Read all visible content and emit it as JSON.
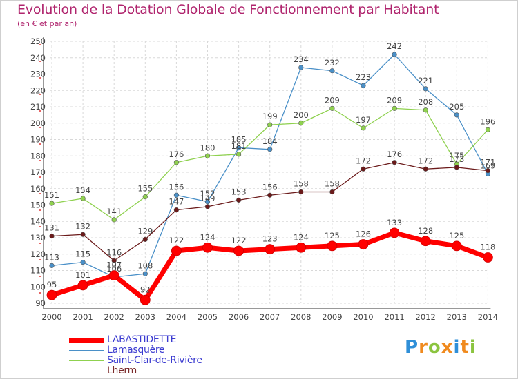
{
  "title": "Evolution de la Dotation Globale de Fonctionnement par Habitant",
  "subtitle": "(en € et par an)",
  "brand": {
    "letters": [
      "P",
      "r",
      "o",
      "x",
      "i",
      "t",
      "i"
    ],
    "colors": [
      "#2f8fd8",
      "#f08a1e",
      "#8bc43f",
      "#f08a1e",
      "#2f8fd8",
      "#f08a1e",
      "#8bc43f"
    ]
  },
  "chart_data": {
    "type": "line",
    "x": [
      2000,
      2001,
      2002,
      2003,
      2004,
      2005,
      2006,
      2007,
      2008,
      2009,
      2010,
      2011,
      2012,
      2013,
      2014
    ],
    "ylim": [
      90,
      250
    ],
    "yticks": [
      90,
      100,
      110,
      120,
      130,
      140,
      150,
      160,
      170,
      180,
      190,
      200,
      210,
      220,
      230,
      240,
      250
    ],
    "grid": true,
    "legend_position": "bottom-left",
    "series": [
      {
        "name": "LABASTIDETTE",
        "color": "#ff0000",
        "values": [
          95,
          101,
          107,
          92,
          122,
          124,
          122,
          123,
          124,
          125,
          126,
          133,
          128,
          125,
          118
        ]
      },
      {
        "name": "Lamasquère",
        "color": "#4a90c8",
        "values": [
          113,
          115,
          106,
          108,
          156,
          152,
          185,
          184,
          234,
          232,
          223,
          242,
          221,
          205,
          169
        ]
      },
      {
        "name": "Saint-Clar-de-Rivière",
        "color": "#8fd14f",
        "values": [
          151,
          154,
          141,
          155,
          176,
          180,
          181,
          199,
          200,
          209,
          197,
          209,
          208,
          175,
          196
        ]
      },
      {
        "name": "Lherm",
        "color": "#6b1a1a",
        "values": [
          131,
          132,
          116,
          129,
          147,
          149,
          153,
          156,
          158,
          158,
          172,
          176,
          172,
          173,
          171
        ]
      }
    ]
  }
}
